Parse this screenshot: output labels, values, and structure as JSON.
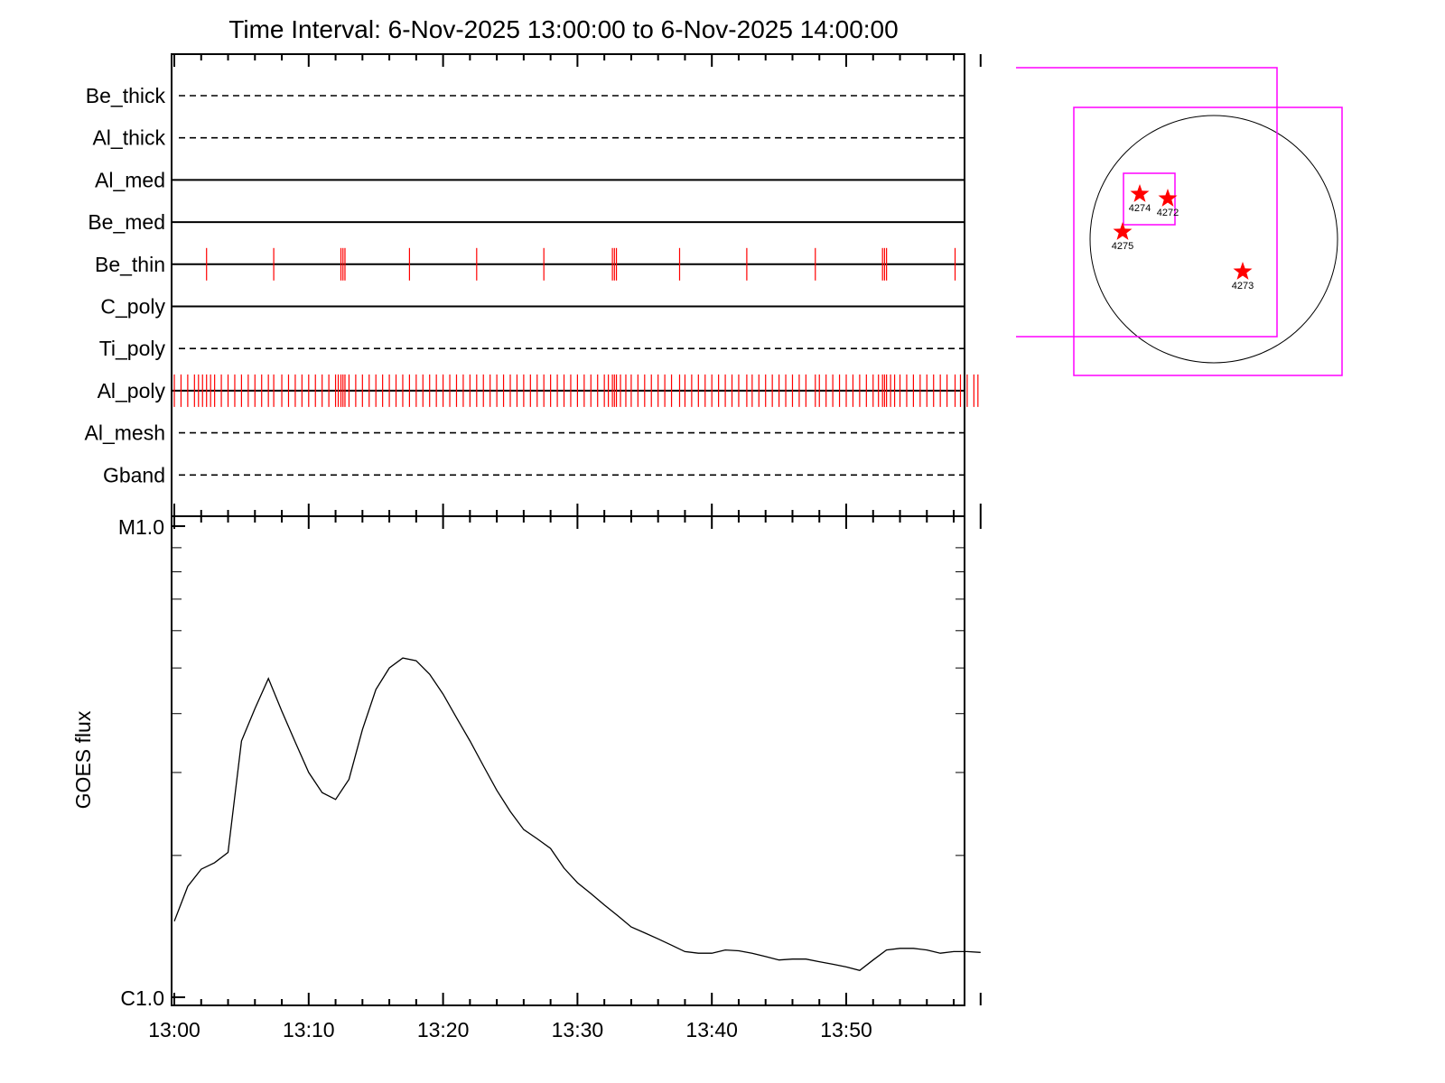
{
  "chart_data": {
    "title": "Time Interval:  6-Nov-2025 13:00:00 to  6-Nov-2025 14:00:00",
    "type": "line",
    "x_range_minutes": [
      0,
      60
    ],
    "x_tick_labels": [
      "13:00",
      "13:10",
      "13:20",
      "13:30",
      "13:40",
      "13:50"
    ],
    "filter_rows": [
      {
        "name": "Be_thick",
        "style": "dashed"
      },
      {
        "name": "Al_thick",
        "style": "dashed"
      },
      {
        "name": "Al_med",
        "style": "solid"
      },
      {
        "name": "Be_med",
        "style": "solid"
      },
      {
        "name": "Be_thin",
        "style": "solid"
      },
      {
        "name": "C_poly",
        "style": "solid"
      },
      {
        "name": "Ti_poly",
        "style": "dashed"
      },
      {
        "name": "Al_poly",
        "style": "solid"
      },
      {
        "name": "Al_mesh",
        "style": "dashed"
      },
      {
        "name": "Gband",
        "style": "dashed"
      }
    ],
    "exposures": {
      "Be_thin": [
        2.4,
        7.4,
        12.4,
        12.55,
        12.7,
        17.5,
        22.5,
        27.5,
        32.6,
        32.75,
        32.9,
        37.6,
        42.6,
        47.7,
        52.7,
        52.85,
        53.0,
        58.1
      ],
      "Al_poly": [
        0.0,
        0.5,
        1.0,
        1.5,
        1.8,
        2.1,
        2.4,
        2.7,
        3.0,
        3.5,
        4.0,
        4.5,
        5.0,
        5.5,
        6.0,
        6.5,
        7.0,
        7.4,
        8.0,
        8.5,
        9.0,
        9.5,
        10.0,
        10.5,
        11.0,
        11.5,
        12.0,
        12.2,
        12.4,
        12.55,
        12.7,
        13.0,
        13.5,
        14.0,
        14.5,
        15.0,
        15.5,
        16.0,
        16.5,
        17.0,
        17.5,
        18.0,
        18.5,
        19.0,
        19.5,
        20.0,
        20.5,
        21.0,
        21.5,
        22.0,
        22.5,
        23.0,
        23.5,
        24.0,
        24.5,
        25.0,
        25.5,
        26.0,
        26.5,
        27.0,
        27.5,
        28.0,
        28.5,
        29.0,
        29.5,
        30.0,
        30.5,
        31.0,
        31.5,
        32.0,
        32.3,
        32.6,
        32.75,
        32.9,
        33.2,
        33.6,
        34.0,
        34.5,
        35.0,
        35.5,
        36.0,
        36.5,
        37.0,
        37.6,
        38.0,
        38.5,
        39.0,
        39.5,
        40.0,
        40.5,
        41.0,
        41.5,
        42.0,
        42.6,
        43.0,
        43.5,
        44.0,
        44.5,
        45.0,
        45.5,
        46.0,
        46.5,
        47.0,
        47.7,
        48.0,
        48.5,
        49.0,
        49.5,
        50.0,
        50.5,
        51.0,
        51.5,
        52.0,
        52.4,
        52.7,
        52.85,
        53.0,
        53.3,
        53.6,
        54.0,
        54.5,
        55.0,
        55.5,
        56.0,
        56.5,
        57.0,
        57.5,
        58.1,
        58.5,
        59.0,
        59.5,
        59.8
      ]
    },
    "goes": {
      "ylabel": "GOES flux",
      "y_tick_labels": [
        "M1.0",
        "C1.0"
      ],
      "y_range_log": [
        -6,
        -5
      ],
      "x_minutes": [
        0,
        1,
        2,
        3,
        4,
        5,
        6,
        7,
        8,
        9,
        10,
        11,
        12,
        13,
        14,
        15,
        16,
        17,
        18,
        19,
        20,
        21,
        22,
        23,
        24,
        25,
        26,
        27,
        28,
        29,
        30,
        31,
        32,
        33,
        34,
        35,
        36,
        37,
        38,
        39,
        40,
        41,
        42,
        43,
        44,
        45,
        46,
        47,
        48,
        49,
        50,
        51,
        52,
        53,
        54,
        55,
        56,
        57,
        58,
        59,
        60
      ],
      "flux": [
        1.45e-06,
        1.72e-06,
        1.87e-06,
        1.93e-06,
        2.03e-06,
        3.5e-06,
        4.1e-06,
        4.75e-06,
        4.05e-06,
        3.48e-06,
        3e-06,
        2.72e-06,
        2.63e-06,
        2.9e-06,
        3.7e-06,
        4.5e-06,
        5e-06,
        5.25e-06,
        5.18e-06,
        4.85e-06,
        4.4e-06,
        3.92e-06,
        3.5e-06,
        3.1e-06,
        2.75e-06,
        2.48e-06,
        2.27e-06,
        2.17e-06,
        2.07e-06,
        1.88e-06,
        1.75e-06,
        1.66e-06,
        1.57e-06,
        1.49e-06,
        1.41e-06,
        1.37e-06,
        1.33e-06,
        1.29e-06,
        1.25e-06,
        1.24e-06,
        1.24e-06,
        1.26e-06,
        1.255e-06,
        1.24e-06,
        1.22e-06,
        1.2e-06,
        1.205e-06,
        1.205e-06,
        1.19e-06,
        1.175e-06,
        1.16e-06,
        1.14e-06,
        1.2e-06,
        1.26e-06,
        1.27e-06,
        1.27e-06,
        1.26e-06,
        1.24e-06,
        1.25e-06,
        1.25e-06,
        1.245e-06
      ]
    }
  },
  "solar_map": {
    "regions": [
      {
        "label": "4274"
      },
      {
        "label": "4272"
      },
      {
        "label": "4275"
      },
      {
        "label": "4273"
      }
    ],
    "colors": {
      "fov": "#ff00ff",
      "marker": "#ff0000",
      "disk": "#000000"
    }
  },
  "colors": {
    "exposure": "#ff0000",
    "curve": "#000000"
  }
}
